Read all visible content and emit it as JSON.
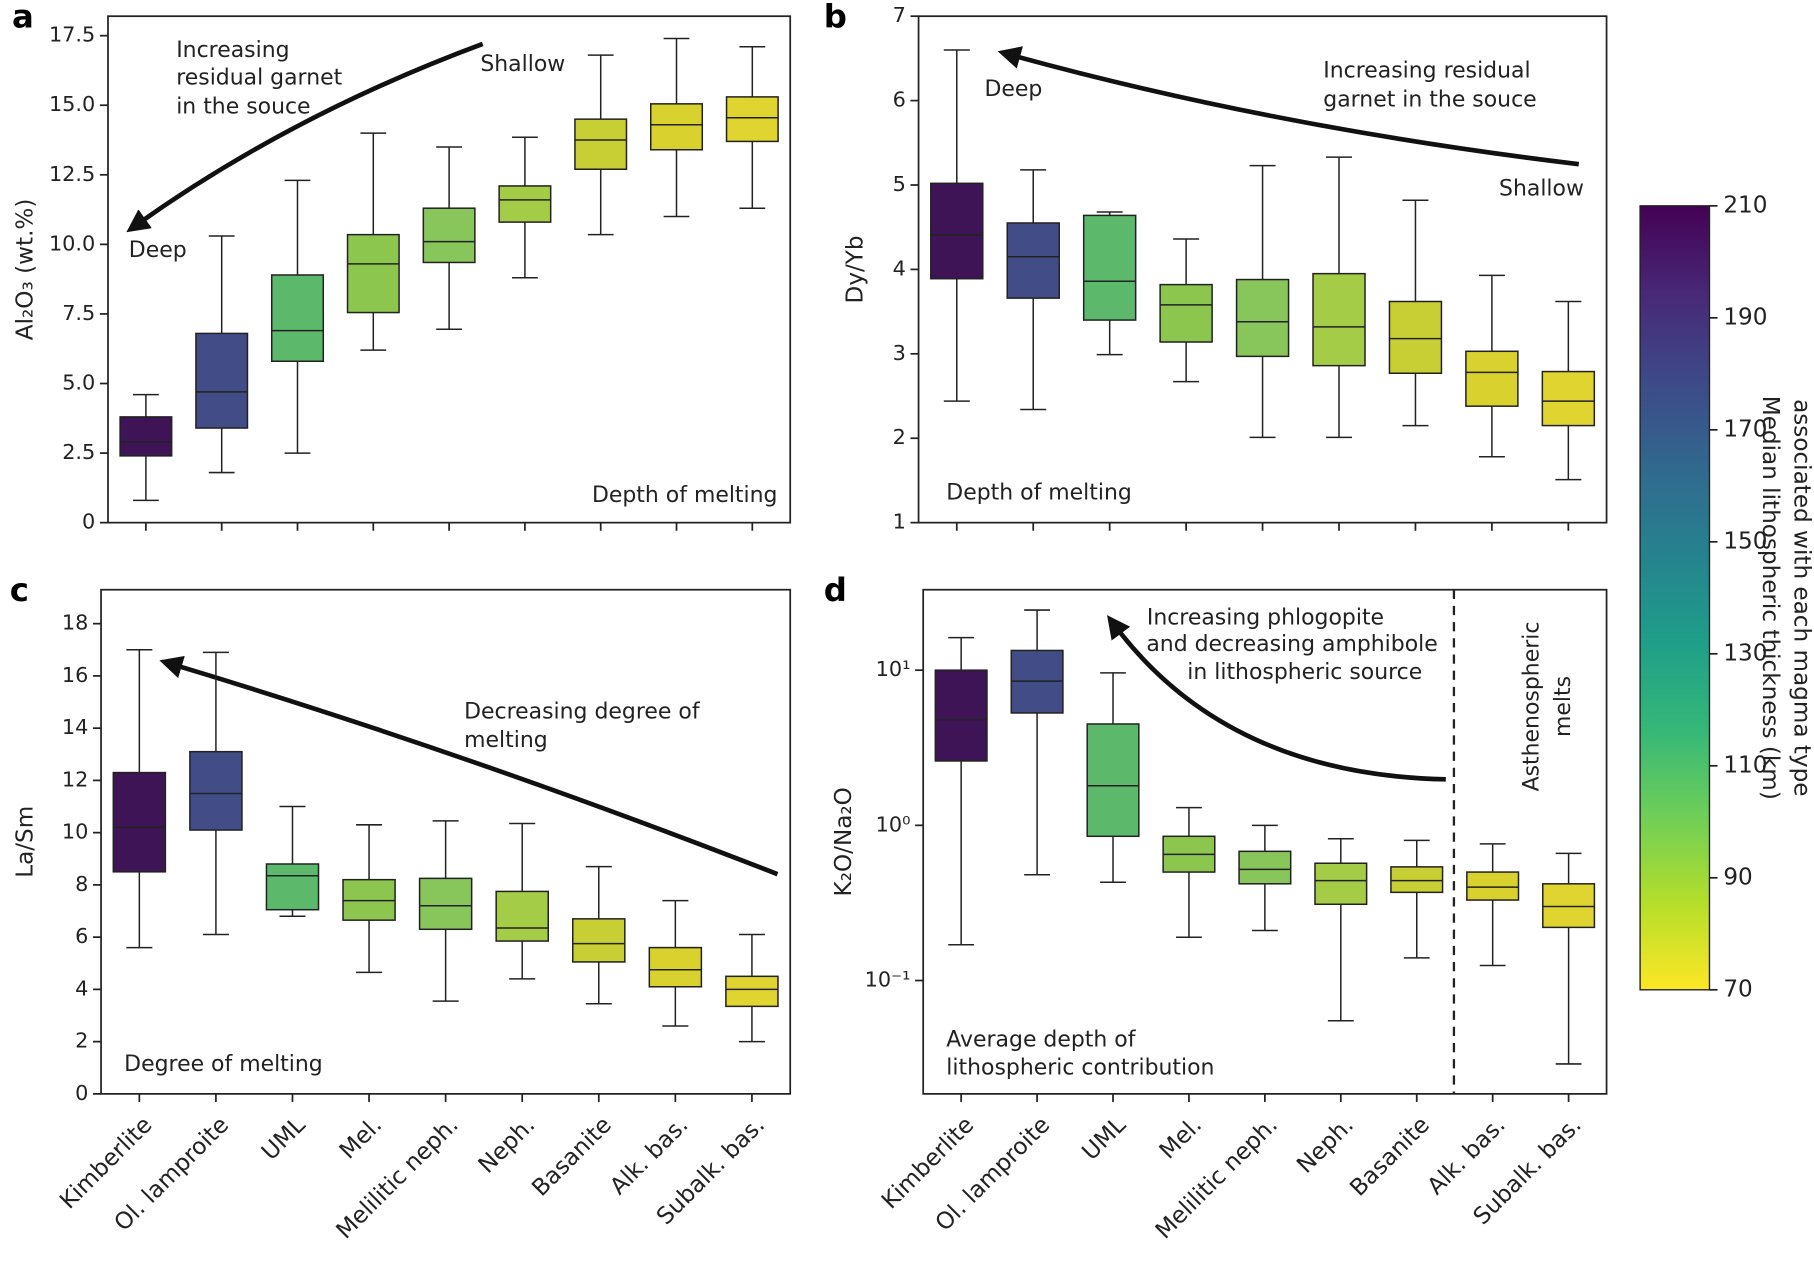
{
  "chart_data": [
    {
      "type": "box",
      "label": "a",
      "ylabel": "Al₂O₃ (wt.%)",
      "ylim": [
        0,
        18.2
      ],
      "yticks": [
        0,
        2.5,
        {
          "value": 5,
          "label": "5.0"
        },
        7.5,
        {
          "value": 10,
          "label": "10.0"
        },
        12.5,
        {
          "value": 15,
          "label": "15.0"
        },
        17.5
      ],
      "colors": [
        "#3e1456",
        "#424c87",
        "#5cb86b",
        "#8dc64f",
        "#88c55a",
        "#a4cc47",
        "#c8cf35",
        "#d9d22e",
        "#e0d430"
      ],
      "boxes": [
        {
          "whislo": 0.8,
          "q1": 2.4,
          "med": 2.9,
          "q3": 3.8,
          "whishi": 4.6
        },
        {
          "whislo": 1.8,
          "q1": 3.4,
          "med": 4.7,
          "q3": 6.8,
          "whishi": 10.3
        },
        {
          "whislo": 2.5,
          "q1": 5.8,
          "med": 6.9,
          "q3": 8.9,
          "whishi": 12.3
        },
        {
          "whislo": 6.2,
          "q1": 7.55,
          "med": 9.3,
          "q3": 10.35,
          "whishi": 14.0
        },
        {
          "whislo": 6.95,
          "q1": 9.35,
          "med": 10.1,
          "q3": 11.3,
          "whishi": 13.5
        },
        {
          "whislo": 8.8,
          "q1": 10.8,
          "med": 11.6,
          "q3": 12.1,
          "whishi": 13.85
        },
        {
          "whislo": 10.35,
          "q1": 12.7,
          "med": 13.75,
          "q3": 14.5,
          "whishi": 16.8
        },
        {
          "whislo": 11.0,
          "q1": 13.4,
          "med": 14.3,
          "q3": 15.05,
          "whishi": 17.4
        },
        {
          "whislo": 11.3,
          "q1": 13.7,
          "med": 14.55,
          "q3": 15.3,
          "whishi": 17.1
        }
      ],
      "annotations": [
        [
          "Increasing",
          "residual garnet",
          "in the souce"
        ],
        [
          "Shallow"
        ],
        [
          "Deep"
        ],
        [
          "Depth of melting"
        ]
      ]
    },
    {
      "type": "box",
      "label": "b",
      "ylabel": "Dy/Yb",
      "ylim": [
        1,
        7
      ],
      "yticks": [
        1,
        2,
        3,
        4,
        5,
        6,
        7
      ],
      "colors": [
        "#3e1456",
        "#424c87",
        "#5cb86b",
        "#8dc64f",
        "#88c55a",
        "#a4cc47",
        "#c8cf35",
        "#d9d22e",
        "#e0d430"
      ],
      "boxes": [
        {
          "whislo": 2.44,
          "q1": 3.89,
          "med": 4.41,
          "q3": 5.02,
          "whishi": 6.6
        },
        {
          "whislo": 2.34,
          "q1": 3.66,
          "med": 4.15,
          "q3": 4.55,
          "whishi": 5.18
        },
        {
          "whislo": 2.99,
          "q1": 3.4,
          "med": 3.86,
          "q3": 4.64,
          "whishi": 4.68
        },
        {
          "whislo": 2.67,
          "q1": 3.14,
          "med": 3.58,
          "q3": 3.82,
          "whishi": 4.36
        },
        {
          "whislo": 2.01,
          "q1": 2.97,
          "med": 3.38,
          "q3": 3.88,
          "whishi": 5.23
        },
        {
          "whislo": 2.01,
          "q1": 2.86,
          "med": 3.32,
          "q3": 3.95,
          "whishi": 5.33
        },
        {
          "whislo": 2.15,
          "q1": 2.77,
          "med": 3.18,
          "q3": 3.62,
          "whishi": 4.82
        },
        {
          "whislo": 1.78,
          "q1": 2.38,
          "med": 2.78,
          "q3": 3.03,
          "whishi": 3.93
        },
        {
          "whislo": 1.51,
          "q1": 2.15,
          "med": 2.44,
          "q3": 2.79,
          "whishi": 3.62
        }
      ],
      "annotations": [
        [
          "Deep"
        ],
        [
          "Increasing residual",
          "garnet in the souce"
        ],
        [
          "Shallow"
        ],
        [
          "Depth of melting"
        ]
      ]
    },
    {
      "type": "box",
      "label": "c",
      "ylabel": "La/Sm",
      "ylim": [
        0,
        19.3
      ],
      "yticks": [
        0,
        2,
        4,
        6,
        8,
        10,
        12,
        14,
        16,
        18
      ],
      "categories": [
        "Kimberlite",
        "Ol. lamproite",
        "UML",
        "Mel.",
        "Melilitic neph.",
        "Neph.",
        "Basanite",
        "Alk. bas.",
        "Subalk. bas."
      ],
      "colors": [
        "#3e1456",
        "#424c87",
        "#5cb86b",
        "#8dc64f",
        "#88c55a",
        "#a4cc47",
        "#c8cf35",
        "#d9d22e",
        "#e0d430"
      ],
      "boxes": [
        {
          "whislo": 5.6,
          "q1": 8.5,
          "med": 10.2,
          "q3": 12.3,
          "whishi": 17.0
        },
        {
          "whislo": 6.1,
          "q1": 10.1,
          "med": 11.5,
          "q3": 13.1,
          "whishi": 16.9
        },
        {
          "whislo": 6.8,
          "q1": 7.05,
          "med": 8.35,
          "q3": 8.8,
          "whishi": 11.0
        },
        {
          "whislo": 4.65,
          "q1": 6.65,
          "med": 7.4,
          "q3": 8.2,
          "whishi": 10.3
        },
        {
          "whislo": 3.55,
          "q1": 6.3,
          "med": 7.2,
          "q3": 8.25,
          "whishi": 10.45
        },
        {
          "whislo": 4.4,
          "q1": 5.85,
          "med": 6.35,
          "q3": 7.75,
          "whishi": 10.35
        },
        {
          "whislo": 3.45,
          "q1": 5.05,
          "med": 5.75,
          "q3": 6.7,
          "whishi": 8.7
        },
        {
          "whislo": 2.6,
          "q1": 4.1,
          "med": 4.75,
          "q3": 5.6,
          "whishi": 7.4
        },
        {
          "whislo": 2.0,
          "q1": 3.35,
          "med": 4.0,
          "q3": 4.5,
          "whishi": 6.1
        }
      ],
      "annotations": [
        [
          "Decreasing degree of",
          "melting"
        ],
        [
          "Degree of melting"
        ]
      ]
    },
    {
      "type": "box",
      "label": "d",
      "ylabel": "K₂O/Na₂O",
      "log": true,
      "ylim": [
        0.0186,
        33
      ],
      "yticks": [
        {
          "value": 0.1,
          "label": "10⁻¹"
        },
        {
          "value": 1,
          "label": "10⁰"
        },
        {
          "value": 10,
          "label": "10¹"
        }
      ],
      "categories": [
        "Kimberlite",
        "Ol. lamproite",
        "UML",
        "Mel.",
        "Melilitic neph.",
        "Neph.",
        "Basanite",
        "Alk. bas.",
        "Subalk. bas."
      ],
      "colors": [
        "#3e1456",
        "#424c87",
        "#5cb86b",
        "#8dc64f",
        "#88c55a",
        "#a4cc47",
        "#c8cf35",
        "#d9d22e",
        "#e0d430"
      ],
      "boxes": [
        {
          "whislo": 0.17,
          "q1": 2.6,
          "med": 4.8,
          "q3": 10.0,
          "whishi": 16.2
        },
        {
          "whislo": 0.48,
          "q1": 5.3,
          "med": 8.5,
          "q3": 13.4,
          "whishi": 24.4
        },
        {
          "whislo": 0.43,
          "q1": 0.85,
          "med": 1.8,
          "q3": 4.5,
          "whishi": 9.6
        },
        {
          "whislo": 0.19,
          "q1": 0.5,
          "med": 0.65,
          "q3": 0.85,
          "whishi": 1.3
        },
        {
          "whislo": 0.21,
          "q1": 0.42,
          "med": 0.52,
          "q3": 0.68,
          "whishi": 1.0
        },
        {
          "whislo": 0.055,
          "q1": 0.31,
          "med": 0.44,
          "q3": 0.57,
          "whishi": 0.82
        },
        {
          "whislo": 0.14,
          "q1": 0.37,
          "med": 0.44,
          "q3": 0.54,
          "whishi": 0.8
        },
        {
          "whislo": 0.125,
          "q1": 0.33,
          "med": 0.4,
          "q3": 0.5,
          "whishi": 0.76
        },
        {
          "whislo": 0.029,
          "q1": 0.22,
          "med": 0.3,
          "q3": 0.42,
          "whishi": 0.66
        }
      ],
      "annotations": [
        [
          "Increasing phlogopite",
          "and decreasing amphibole",
          "in lithospheric source"
        ],
        [
          "Asthenospheric",
          "melts"
        ],
        [
          "Average depth of",
          "lithospheric contribution"
        ]
      ]
    },
    {
      "type": "colorbar",
      "label": [
        "Median lithospheric thickness (km)",
        "associated with each magma type"
      ],
      "ylim": [
        70,
        210
      ],
      "yticks": [
        70,
        90,
        110,
        130,
        150,
        170,
        190,
        210
      ],
      "colors": [
        "#fde725",
        "#b5de2b",
        "#6ece58",
        "#35b779",
        "#1f9e89",
        "#26828e",
        "#31688e",
        "#3e4989",
        "#482878",
        "#440154"
      ]
    }
  ]
}
